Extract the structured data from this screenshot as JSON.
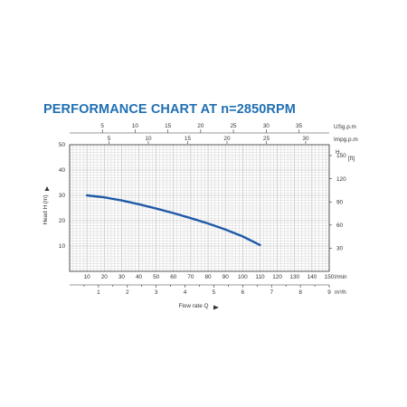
{
  "title": "PERFORMANCE CHART AT n=2850RPM",
  "colors": {
    "title": "#1f6fb2",
    "curve": "#1f5aa8"
  },
  "chart_data": {
    "type": "line",
    "title": "PERFORMANCE CHART AT n=2850RPM",
    "xlabel": "Flow rate Q",
    "ylabel": "Head H (m)",
    "xlim": [
      0,
      150
    ],
    "ylim": [
      0,
      50
    ],
    "grid": true,
    "x_ticks": [
      10,
      20,
      30,
      40,
      50,
      60,
      70,
      80,
      90,
      100,
      110,
      120,
      130,
      140,
      150
    ],
    "y_ticks": [
      10,
      20,
      30,
      40,
      50
    ],
    "x_unit": "l/min",
    "secondary_axes": {
      "m3h": {
        "unit": "m³/h",
        "ticks": [
          1,
          2,
          3,
          4,
          5,
          6,
          7,
          8,
          9
        ]
      },
      "usgpm": {
        "unit": "USg.p.m",
        "ticks": [
          5,
          10,
          15,
          20,
          25,
          30,
          35
        ]
      },
      "impgpm": {
        "unit": "Impg.p.m",
        "ticks": [
          5,
          10,
          15,
          20,
          25,
          30
        ]
      },
      "head_ft": {
        "unit": "H\n[ft]",
        "ticks": [
          30,
          60,
          90,
          120,
          150
        ]
      }
    },
    "series": [
      {
        "x": [
          10,
          20,
          30,
          40,
          50,
          60,
          70,
          80,
          90,
          100,
          110
        ],
        "y": [
          30,
          29.2,
          28,
          26.5,
          24.8,
          23,
          21,
          18.9,
          16.5,
          13.8,
          10.4
        ]
      }
    ]
  }
}
